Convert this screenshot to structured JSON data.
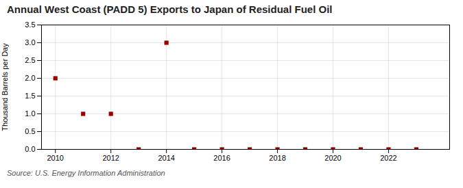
{
  "chart_data": {
    "type": "scatter",
    "title": "Annual West Coast (PADD 5) Exports to Japan of Residual Fuel Oil",
    "ylabel": "Thousand Barrels per Day",
    "source": "Source: U.S. Energy Information Administration",
    "x": [
      2010,
      2011,
      2012,
      2013,
      2014,
      2015,
      2016,
      2017,
      2018,
      2019,
      2020,
      2021,
      2022,
      2023
    ],
    "values": [
      2.0,
      1.0,
      1.0,
      0.0,
      3.0,
      0.0,
      0.0,
      0.0,
      0.0,
      0.0,
      0.0,
      0.0,
      0.0,
      0.0
    ],
    "color": "#990000",
    "marker": "square",
    "xlim": [
      2009.5,
      2024.2
    ],
    "xticks": [
      2010,
      2012,
      2014,
      2016,
      2018,
      2020,
      2022
    ],
    "ylim": [
      0.0,
      3.5
    ],
    "yticks": [
      {
        "value": 0.0,
        "label": "0.0"
      },
      {
        "value": 0.5,
        "label": "0.5"
      },
      {
        "value": 1.0,
        "label": "1.0"
      },
      {
        "value": 1.5,
        "label": "1.5"
      },
      {
        "value": 2.0,
        "label": "2.0"
      },
      {
        "value": 2.5,
        "label": "2.5"
      },
      {
        "value": 3.0,
        "label": "3.0"
      },
      {
        "value": 3.5,
        "label": "3.5"
      }
    ],
    "grid": true
  }
}
